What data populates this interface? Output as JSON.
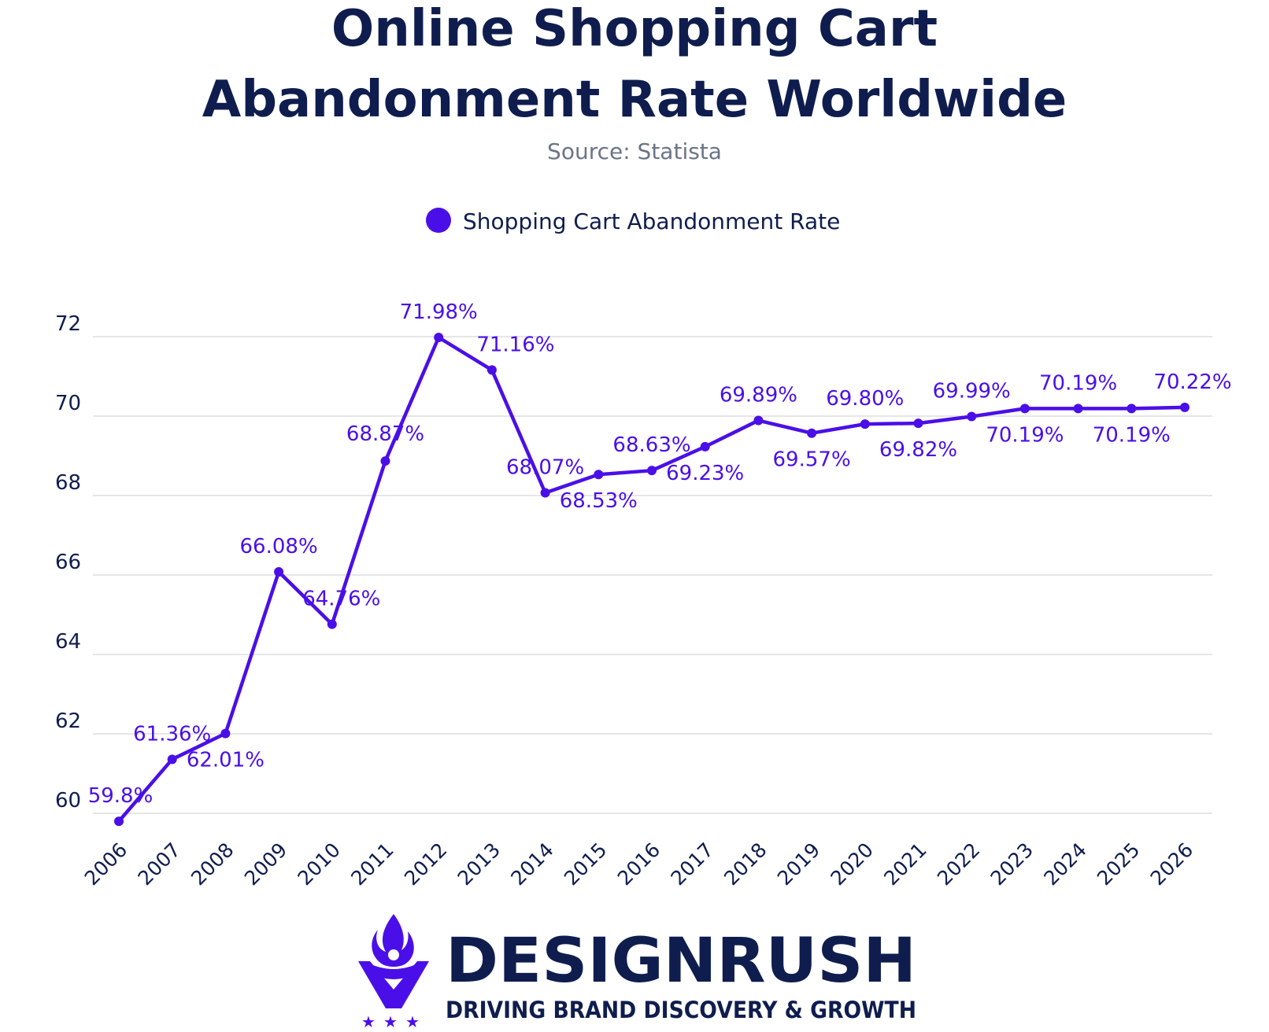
{
  "colors": {
    "accent": "#4a0fe8",
    "title": "#0f1d4e",
    "subtitle": "#6b7487",
    "grid": "#dddddd"
  },
  "header": {
    "title_line1": "Online Shopping Cart",
    "title_line2": "Abandonment Rate Worldwide",
    "source": "Source: Statista"
  },
  "legend": {
    "label": "Shopping Cart Abandonment Rate",
    "placement": "top-center"
  },
  "chart_data": {
    "type": "line",
    "title": "Online Shopping Cart Abandonment Rate Worldwide",
    "subtitle": "Source: Statista",
    "xlabel": "",
    "ylabel": "",
    "grid": true,
    "ylim": [
      60,
      72
    ],
    "yticks": [
      "60",
      "62",
      "64",
      "66",
      "68",
      "70",
      "72"
    ],
    "categories": [
      "2006",
      "2007",
      "2008",
      "2009",
      "2010",
      "2011",
      "2012",
      "2013",
      "2014",
      "2015",
      "2016",
      "2017",
      "2018",
      "2019",
      "2020",
      "2021",
      "2022",
      "2023",
      "2024",
      "2025",
      "2026"
    ],
    "series": [
      {
        "name": "Shopping Cart Abandonment Rate",
        "values": [
          59.8,
          61.36,
          62.01,
          66.08,
          64.76,
          68.87,
          71.98,
          71.16,
          68.07,
          68.53,
          68.63,
          69.23,
          69.89,
          69.57,
          69.8,
          69.82,
          69.99,
          70.19,
          70.19,
          70.19,
          70.22
        ],
        "data_labels": [
          "59.8%",
          "61.36%",
          "62.01%",
          "66.08%",
          "64.76%",
          "68.87%",
          "71.98%",
          "71.16%",
          "68.07%",
          "68.53%",
          "68.63%",
          "69.23%",
          "69.89%",
          "69.57%",
          "69.80%",
          "69.82%",
          "69.99%",
          "70.19%",
          "70.19%",
          "70.19%",
          "70.22%"
        ]
      }
    ]
  },
  "brand": {
    "name": "DESIGNRUSH",
    "tagline": "DRIVING BRAND DISCOVERY & GROWTH",
    "logo_icon": "flame-shield-logo"
  }
}
